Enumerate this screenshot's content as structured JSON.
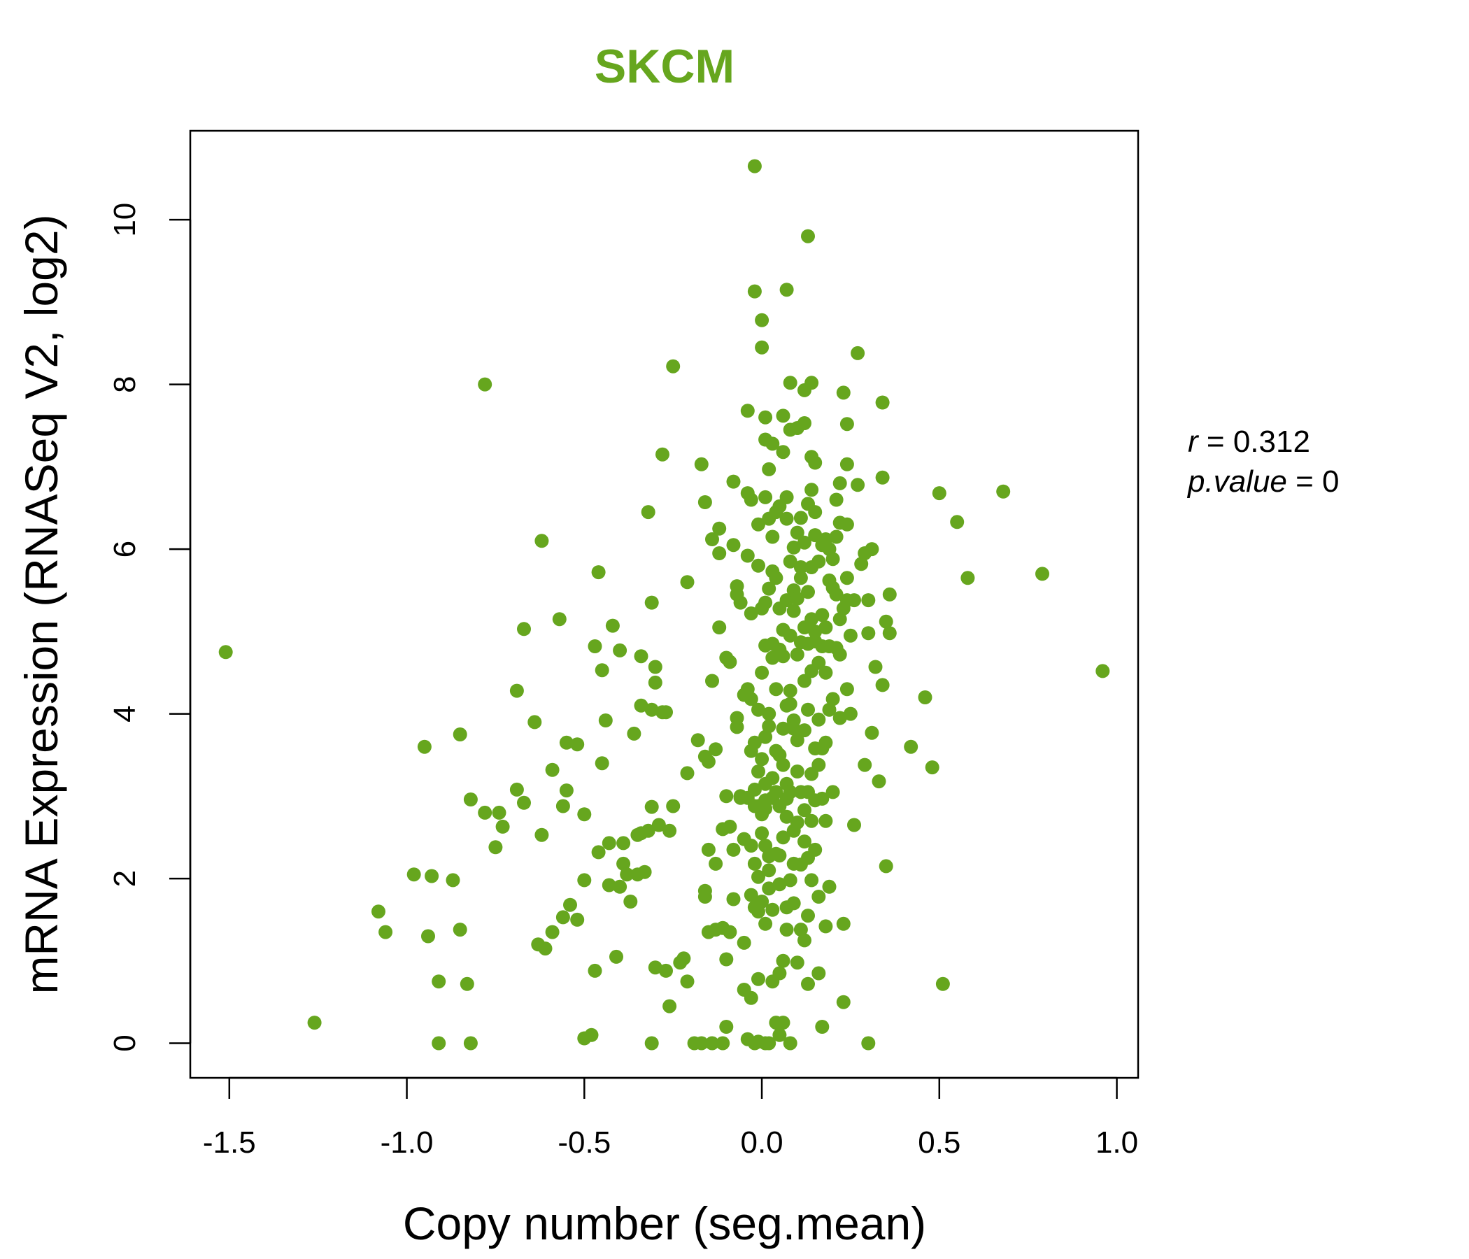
{
  "chart_data": {
    "type": "scatter",
    "title": "SKCM",
    "xlabel": "Copy number (seg.mean)",
    "ylabel": "mRNA Expression (RNASeq V2, log2)",
    "xlim": [
      -1.61,
      1.06
    ],
    "ylim": [
      -0.42,
      11.08
    ],
    "xticks": [
      -1.5,
      -1.0,
      -0.5,
      0.0,
      0.5,
      1.0
    ],
    "xtick_labels": [
      "-1.5",
      "-1.0",
      "-0.5",
      "0.0",
      "0.5",
      "1.0"
    ],
    "yticks": [
      0,
      2,
      4,
      6,
      8,
      10
    ],
    "ytick_labels": [
      "0",
      "2",
      "4",
      "6",
      "8",
      "10"
    ],
    "point_color": "#66a61e",
    "stats": {
      "r_symbol": "r",
      "r_value": "0.312",
      "p_symbol": "p.value",
      "p_value": "0"
    },
    "points": [
      [
        -1.51,
        4.75
      ],
      [
        -1.26,
        0.25
      ],
      [
        -1.08,
        1.6
      ],
      [
        -1.06,
        1.35
      ],
      [
        -0.98,
        2.05
      ],
      [
        -0.95,
        3.6
      ],
      [
        -0.94,
        1.3
      ],
      [
        -0.93,
        2.03
      ],
      [
        -0.91,
        0.75
      ],
      [
        -0.91,
        0.0
      ],
      [
        -0.87,
        1.98
      ],
      [
        -0.85,
        3.75
      ],
      [
        -0.85,
        1.38
      ],
      [
        -0.83,
        0.72
      ],
      [
        -0.82,
        0.0
      ],
      [
        -0.82,
        2.96
      ],
      [
        -0.78,
        2.8
      ],
      [
        -0.78,
        8.0
      ],
      [
        -0.75,
        2.38
      ],
      [
        -0.74,
        2.8
      ],
      [
        -0.73,
        2.63
      ],
      [
        -0.69,
        3.08
      ],
      [
        -0.69,
        4.28
      ],
      [
        -0.67,
        2.92
      ],
      [
        -0.67,
        5.03
      ],
      [
        -0.64,
        3.9
      ],
      [
        -0.63,
        1.2
      ],
      [
        -0.62,
        6.1
      ],
      [
        -0.62,
        2.53
      ],
      [
        -0.61,
        1.15
      ],
      [
        -0.59,
        3.32
      ],
      [
        -0.59,
        1.35
      ],
      [
        -0.57,
        5.15
      ],
      [
        -0.56,
        1.53
      ],
      [
        -0.56,
        2.88
      ],
      [
        -0.55,
        3.07
      ],
      [
        -0.55,
        3.65
      ],
      [
        -0.54,
        1.68
      ],
      [
        -0.52,
        1.5
      ],
      [
        -0.52,
        3.63
      ],
      [
        -0.5,
        0.06
      ],
      [
        -0.5,
        1.98
      ],
      [
        -0.5,
        2.78
      ],
      [
        -0.48,
        0.1
      ],
      [
        -0.47,
        4.82
      ],
      [
        -0.47,
        0.88
      ],
      [
        -0.46,
        2.32
      ],
      [
        -0.46,
        5.72
      ],
      [
        -0.45,
        4.53
      ],
      [
        -0.45,
        3.4
      ],
      [
        -0.44,
        3.92
      ],
      [
        -0.43,
        2.43
      ],
      [
        -0.43,
        1.92
      ],
      [
        -0.42,
        5.07
      ],
      [
        -0.41,
        1.05
      ],
      [
        -0.4,
        4.77
      ],
      [
        -0.4,
        1.9
      ],
      [
        -0.39,
        2.18
      ],
      [
        -0.39,
        2.43
      ],
      [
        -0.38,
        2.05
      ],
      [
        -0.37,
        1.72
      ],
      [
        -0.36,
        3.76
      ],
      [
        -0.35,
        2.05
      ],
      [
        -0.35,
        2.53
      ],
      [
        -0.34,
        2.55
      ],
      [
        -0.34,
        4.7
      ],
      [
        -0.34,
        4.1
      ],
      [
        -0.33,
        2.08
      ],
      [
        -0.32,
        6.45
      ],
      [
        -0.32,
        2.58
      ],
      [
        -0.31,
        2.87
      ],
      [
        -0.31,
        4.05
      ],
      [
        -0.31,
        5.35
      ],
      [
        -0.31,
        0.0
      ],
      [
        -0.3,
        4.38
      ],
      [
        -0.3,
        4.57
      ],
      [
        -0.3,
        0.92
      ],
      [
        -0.29,
        2.65
      ],
      [
        -0.28,
        4.02
      ],
      [
        -0.28,
        7.15
      ],
      [
        -0.27,
        4.02
      ],
      [
        -0.27,
        0.88
      ],
      [
        -0.26,
        2.58
      ],
      [
        -0.26,
        0.45
      ],
      [
        -0.25,
        8.22
      ],
      [
        -0.25,
        2.88
      ],
      [
        -0.23,
        0.98
      ],
      [
        -0.22,
        1.03
      ],
      [
        -0.21,
        5.6
      ],
      [
        -0.21,
        3.28
      ],
      [
        -0.21,
        0.75
      ],
      [
        -0.19,
        0.0
      ],
      [
        -0.18,
        3.68
      ],
      [
        -0.17,
        0.0
      ],
      [
        -0.17,
        7.03
      ],
      [
        -0.16,
        6.57
      ],
      [
        -0.16,
        3.48
      ],
      [
        -0.16,
        1.85
      ],
      [
        -0.16,
        1.78
      ],
      [
        -0.15,
        2.35
      ],
      [
        -0.15,
        3.42
      ],
      [
        -0.15,
        1.35
      ],
      [
        -0.14,
        6.12
      ],
      [
        -0.14,
        4.4
      ],
      [
        -0.14,
        0.0
      ],
      [
        -0.13,
        1.38
      ],
      [
        -0.13,
        3.57
      ],
      [
        -0.13,
        2.18
      ],
      [
        -0.12,
        6.25
      ],
      [
        -0.12,
        5.05
      ],
      [
        -0.12,
        5.95
      ],
      [
        -0.11,
        0.0
      ],
      [
        -0.11,
        2.6
      ],
      [
        -0.11,
        1.4
      ],
      [
        -0.1,
        3.0
      ],
      [
        -0.1,
        4.68
      ],
      [
        -0.1,
        0.2
      ],
      [
        -0.1,
        1.02
      ],
      [
        -0.09,
        2.63
      ],
      [
        -0.09,
        4.63
      ],
      [
        -0.09,
        1.35
      ],
      [
        -0.08,
        6.82
      ],
      [
        -0.08,
        1.75
      ],
      [
        -0.08,
        2.35
      ],
      [
        -0.08,
        6.05
      ],
      [
        -0.07,
        3.84
      ],
      [
        -0.07,
        3.95
      ],
      [
        -0.07,
        5.55
      ],
      [
        -0.07,
        5.45
      ],
      [
        -0.06,
        5.35
      ],
      [
        -0.06,
        3.0
      ],
      [
        -0.06,
        2.98
      ],
      [
        -0.05,
        0.65
      ],
      [
        -0.05,
        2.48
      ],
      [
        -0.05,
        4.23
      ],
      [
        -0.05,
        1.22
      ],
      [
        -0.04,
        0.05
      ],
      [
        -0.04,
        5.92
      ],
      [
        -0.04,
        2.98
      ],
      [
        -0.04,
        4.3
      ],
      [
        -0.04,
        7.68
      ],
      [
        -0.04,
        6.68
      ],
      [
        -0.03,
        3.55
      ],
      [
        -0.03,
        5.22
      ],
      [
        -0.03,
        1.8
      ],
      [
        -0.03,
        2.4
      ],
      [
        -0.03,
        0.55
      ],
      [
        -0.03,
        6.6
      ],
      [
        -0.03,
        4.18
      ],
      [
        -0.02,
        3.08
      ],
      [
        -0.02,
        2.88
      ],
      [
        -0.02,
        2.18
      ],
      [
        -0.02,
        0.0
      ],
      [
        -0.02,
        9.13
      ],
      [
        -0.02,
        1.65
      ],
      [
        -0.02,
        10.65
      ],
      [
        -0.02,
        3.65
      ],
      [
        -0.01,
        0.02
      ],
      [
        -0.01,
        2.02
      ],
      [
        -0.01,
        5.8
      ],
      [
        -0.01,
        4.05
      ],
      [
        -0.01,
        2.88
      ],
      [
        -0.01,
        0.78
      ],
      [
        -0.01,
        6.3
      ],
      [
        -0.01,
        1.6
      ],
      [
        -0.01,
        3.3
      ],
      [
        0.0,
        3.45
      ],
      [
        0.0,
        8.78
      ],
      [
        0.0,
        5.28
      ],
      [
        0.0,
        4.5
      ],
      [
        0.0,
        2.55
      ],
      [
        0.0,
        2.78
      ],
      [
        0.0,
        8.45
      ],
      [
        0.0,
        1.72
      ],
      [
        0.01,
        0.0
      ],
      [
        0.01,
        3.72
      ],
      [
        0.01,
        4.83
      ],
      [
        0.01,
        1.45
      ],
      [
        0.01,
        2.95
      ],
      [
        0.01,
        6.63
      ],
      [
        0.01,
        5.35
      ],
      [
        0.01,
        2.4
      ],
      [
        0.01,
        2.85
      ],
      [
        0.01,
        7.6
      ],
      [
        0.01,
        3.15
      ],
      [
        0.01,
        7.33
      ],
      [
        0.02,
        6.97
      ],
      [
        0.02,
        0.0
      ],
      [
        0.02,
        5.52
      ],
      [
        0.02,
        4.0
      ],
      [
        0.02,
        2.27
      ],
      [
        0.02,
        3.85
      ],
      [
        0.02,
        2.1
      ],
      [
        0.02,
        6.37
      ],
      [
        0.02,
        1.88
      ],
      [
        0.03,
        4.68
      ],
      [
        0.03,
        3.22
      ],
      [
        0.03,
        7.28
      ],
      [
        0.03,
        5.73
      ],
      [
        0.03,
        1.62
      ],
      [
        0.03,
        0.75
      ],
      [
        0.03,
        4.85
      ],
      [
        0.03,
        2.98
      ],
      [
        0.03,
        6.15
      ],
      [
        0.04,
        2.3
      ],
      [
        0.04,
        0.25
      ],
      [
        0.04,
        3.05
      ],
      [
        0.04,
        4.3
      ],
      [
        0.04,
        3.55
      ],
      [
        0.04,
        5.65
      ],
      [
        0.04,
        6.45
      ],
      [
        0.05,
        1.93
      ],
      [
        0.05,
        2.88
      ],
      [
        0.05,
        0.85
      ],
      [
        0.05,
        6.52
      ],
      [
        0.05,
        3.5
      ],
      [
        0.05,
        5.28
      ],
      [
        0.05,
        2.28
      ],
      [
        0.05,
        0.1
      ],
      [
        0.05,
        4.78
      ],
      [
        0.06,
        7.18
      ],
      [
        0.06,
        1.0
      ],
      [
        0.06,
        4.7
      ],
      [
        0.06,
        3.82
      ],
      [
        0.06,
        5.02
      ],
      [
        0.06,
        2.5
      ],
      [
        0.06,
        0.25
      ],
      [
        0.06,
        7.62
      ],
      [
        0.06,
        3.38
      ],
      [
        0.07,
        4.1
      ],
      [
        0.07,
        1.65
      ],
      [
        0.07,
        3.15
      ],
      [
        0.07,
        6.63
      ],
      [
        0.07,
        2.75
      ],
      [
        0.07,
        1.38
      ],
      [
        0.07,
        5.38
      ],
      [
        0.07,
        6.37
      ],
      [
        0.07,
        2.97
      ],
      [
        0.07,
        9.15
      ],
      [
        0.08,
        4.28
      ],
      [
        0.08,
        3.05
      ],
      [
        0.08,
        5.85
      ],
      [
        0.08,
        4.95
      ],
      [
        0.08,
        1.98
      ],
      [
        0.08,
        7.45
      ],
      [
        0.08,
        8.02
      ],
      [
        0.08,
        0.0
      ],
      [
        0.08,
        4.12
      ],
      [
        0.09,
        2.58
      ],
      [
        0.09,
        5.5
      ],
      [
        0.09,
        6.02
      ],
      [
        0.09,
        3.92
      ],
      [
        0.09,
        1.7
      ],
      [
        0.09,
        5.25
      ],
      [
        0.09,
        3.82
      ],
      [
        0.09,
        2.18
      ],
      [
        0.1,
        4.72
      ],
      [
        0.1,
        0.98
      ],
      [
        0.1,
        7.47
      ],
      [
        0.1,
        3.3
      ],
      [
        0.1,
        5.4
      ],
      [
        0.1,
        6.2
      ],
      [
        0.1,
        2.68
      ],
      [
        0.1,
        3.68
      ],
      [
        0.11,
        1.38
      ],
      [
        0.11,
        5.78
      ],
      [
        0.11,
        4.87
      ],
      [
        0.11,
        2.17
      ],
      [
        0.11,
        6.38
      ],
      [
        0.11,
        3.05
      ],
      [
        0.11,
        5.65
      ],
      [
        0.12,
        7.93
      ],
      [
        0.12,
        4.4
      ],
      [
        0.12,
        1.25
      ],
      [
        0.12,
        2.83
      ],
      [
        0.12,
        6.08
      ],
      [
        0.12,
        3.8
      ],
      [
        0.12,
        5.05
      ],
      [
        0.12,
        2.45
      ],
      [
        0.12,
        7.53
      ],
      [
        0.13,
        4.05
      ],
      [
        0.13,
        0.72
      ],
      [
        0.13,
        5.48
      ],
      [
        0.13,
        3.05
      ],
      [
        0.13,
        1.55
      ],
      [
        0.13,
        6.55
      ],
      [
        0.13,
        2.25
      ],
      [
        0.13,
        4.85
      ],
      [
        0.13,
        9.8
      ],
      [
        0.14,
        5.78
      ],
      [
        0.14,
        3.27
      ],
      [
        0.14,
        6.72
      ],
      [
        0.14,
        2.7
      ],
      [
        0.14,
        4.52
      ],
      [
        0.14,
        7.12
      ],
      [
        0.14,
        5.15
      ],
      [
        0.14,
        1.98
      ],
      [
        0.14,
        8.02
      ],
      [
        0.15,
        3.58
      ],
      [
        0.15,
        6.45
      ],
      [
        0.15,
        4.88
      ],
      [
        0.15,
        2.95
      ],
      [
        0.15,
        5.0
      ],
      [
        0.15,
        7.05
      ],
      [
        0.15,
        2.35
      ],
      [
        0.15,
        6.17
      ],
      [
        0.16,
        3.93
      ],
      [
        0.16,
        4.62
      ],
      [
        0.16,
        0.85
      ],
      [
        0.16,
        5.85
      ],
      [
        0.16,
        3.38
      ],
      [
        0.16,
        1.78
      ],
      [
        0.17,
        4.82
      ],
      [
        0.17,
        6.05
      ],
      [
        0.17,
        2.97
      ],
      [
        0.17,
        5.2
      ],
      [
        0.17,
        3.58
      ],
      [
        0.17,
        0.2
      ],
      [
        0.18,
        4.5
      ],
      [
        0.18,
        6.12
      ],
      [
        0.18,
        2.7
      ],
      [
        0.18,
        5.05
      ],
      [
        0.18,
        3.65
      ],
      [
        0.18,
        1.42
      ],
      [
        0.19,
        4.05
      ],
      [
        0.19,
        6.0
      ],
      [
        0.19,
        4.82
      ],
      [
        0.19,
        5.62
      ],
      [
        0.19,
        1.9
      ],
      [
        0.2,
        3.05
      ],
      [
        0.2,
        5.88
      ],
      [
        0.2,
        4.18
      ],
      [
        0.2,
        5.53
      ],
      [
        0.21,
        6.6
      ],
      [
        0.21,
        4.8
      ],
      [
        0.21,
        5.45
      ],
      [
        0.21,
        6.15
      ],
      [
        0.22,
        6.8
      ],
      [
        0.22,
        5.15
      ],
      [
        0.22,
        4.72
      ],
      [
        0.22,
        6.32
      ],
      [
        0.22,
        3.95
      ],
      [
        0.23,
        7.9
      ],
      [
        0.23,
        5.28
      ],
      [
        0.23,
        1.45
      ],
      [
        0.23,
        0.5
      ],
      [
        0.24,
        7.03
      ],
      [
        0.24,
        5.65
      ],
      [
        0.24,
        6.3
      ],
      [
        0.24,
        4.3
      ],
      [
        0.24,
        5.38
      ],
      [
        0.24,
        7.52
      ],
      [
        0.25,
        4.0
      ],
      [
        0.25,
        4.95
      ],
      [
        0.26,
        2.65
      ],
      [
        0.26,
        5.38
      ],
      [
        0.27,
        8.38
      ],
      [
        0.27,
        6.78
      ],
      [
        0.28,
        5.82
      ],
      [
        0.29,
        5.95
      ],
      [
        0.29,
        3.38
      ],
      [
        0.3,
        4.98
      ],
      [
        0.3,
        0.0
      ],
      [
        0.3,
        5.38
      ],
      [
        0.31,
        3.77
      ],
      [
        0.31,
        6.0
      ],
      [
        0.32,
        4.57
      ],
      [
        0.33,
        3.18
      ],
      [
        0.34,
        7.78
      ],
      [
        0.34,
        6.87
      ],
      [
        0.34,
        4.35
      ],
      [
        0.35,
        5.12
      ],
      [
        0.35,
        2.15
      ],
      [
        0.36,
        5.45
      ],
      [
        0.36,
        4.98
      ],
      [
        0.42,
        3.6
      ],
      [
        0.46,
        4.2
      ],
      [
        0.48,
        3.35
      ],
      [
        0.5,
        6.68
      ],
      [
        0.51,
        0.72
      ],
      [
        0.55,
        6.33
      ],
      [
        0.58,
        5.65
      ],
      [
        0.68,
        6.7
      ],
      [
        0.79,
        5.7
      ],
      [
        0.96,
        4.52
      ]
    ]
  }
}
